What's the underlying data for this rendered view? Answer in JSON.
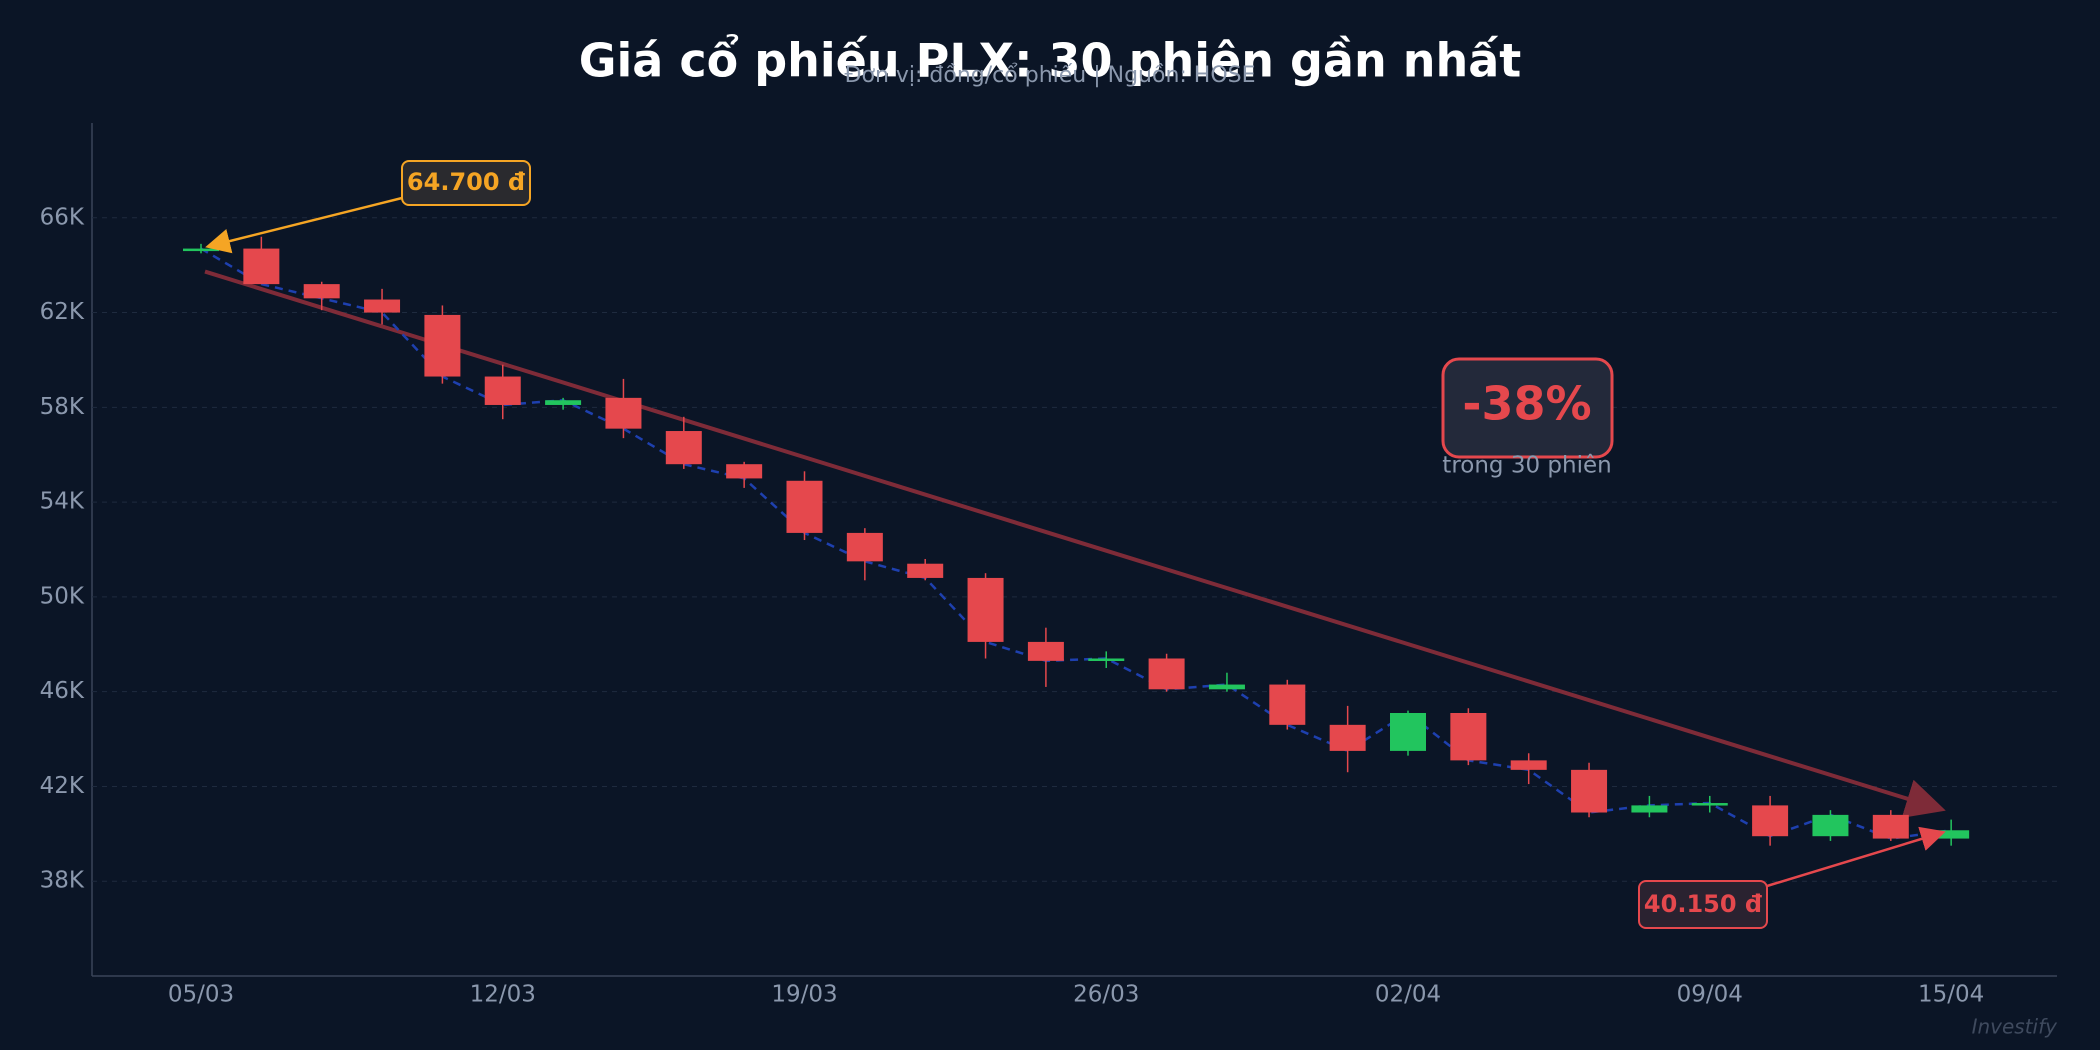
{
  "chart_data": {
    "type": "candlestick",
    "title": "Giá cổ phiếu PLX: 30 phiên gần nhất",
    "subtitle": "Đơn vị: đồng/cổ phiếu  |  Nguồn: HOSE",
    "categories": [
      "05/03",
      null,
      null,
      null,
      null,
      "12/03",
      null,
      null,
      null,
      null,
      "19/03",
      null,
      null,
      null,
      null,
      "26/03",
      null,
      null,
      null,
      null,
      "02/04",
      null,
      null,
      null,
      null,
      "09/04",
      null,
      null,
      null,
      "15/04"
    ],
    "open": [
      64700,
      64700,
      63200,
      62550,
      61900,
      59300,
      58100,
      58400,
      57000,
      55600,
      54900,
      52700,
      51400,
      50800,
      48100,
      47300,
      47400,
      46100,
      46300,
      44600,
      43500,
      45100,
      43100,
      42700,
      40900,
      41200,
      41200,
      39900,
      40800,
      39800
    ],
    "high": [
      64900,
      65200,
      63300,
      63000,
      62300,
      59800,
      58400,
      59200,
      57600,
      55700,
      55300,
      52900,
      51600,
      51000,
      48700,
      47700,
      47600,
      46800,
      46500,
      45400,
      45200,
      45300,
      43400,
      43000,
      41600,
      41600,
      41600,
      41000,
      41000,
      40600
    ],
    "low": [
      64500,
      63200,
      62100,
      61500,
      59000,
      57500,
      57900,
      56700,
      55400,
      54600,
      52400,
      50700,
      50700,
      47400,
      46200,
      47000,
      46000,
      46000,
      44400,
      42600,
      43300,
      42900,
      42100,
      40700,
      40700,
      40900,
      39500,
      39700,
      39700,
      39500
    ],
    "close": [
      64700,
      63200,
      62600,
      62000,
      59300,
      58100,
      58300,
      57100,
      55600,
      55000,
      52700,
      51500,
      50800,
      48100,
      47300,
      47400,
      46100,
      46300,
      44600,
      43500,
      45100,
      43100,
      42700,
      40900,
      41200,
      41300,
      39900,
      40800,
      39800,
      40150
    ],
    "up_color": "#22c55e",
    "down_color": "#e5484d",
    "close_line_color": "#1e40af",
    "trend_color": "#8b2e3a",
    "ylim": [
      34000,
      70000
    ],
    "yticks": [
      {
        "value": 38000,
        "label": "38K"
      },
      {
        "value": 42000,
        "label": "42K"
      },
      {
        "value": 46000,
        "label": "46K"
      },
      {
        "value": 50000,
        "label": "50K"
      },
      {
        "value": 54000,
        "label": "54K"
      },
      {
        "value": 58000,
        "label": "58K"
      },
      {
        "value": 62000,
        "label": "62K"
      },
      {
        "value": 66000,
        "label": "66K"
      }
    ],
    "grid": true,
    "annotations": {
      "start_price": "64.700 đ",
      "end_price": "40.150 đ",
      "change": "-38%",
      "change_note": "trong 30 phiên"
    },
    "watermark": "Investify"
  }
}
